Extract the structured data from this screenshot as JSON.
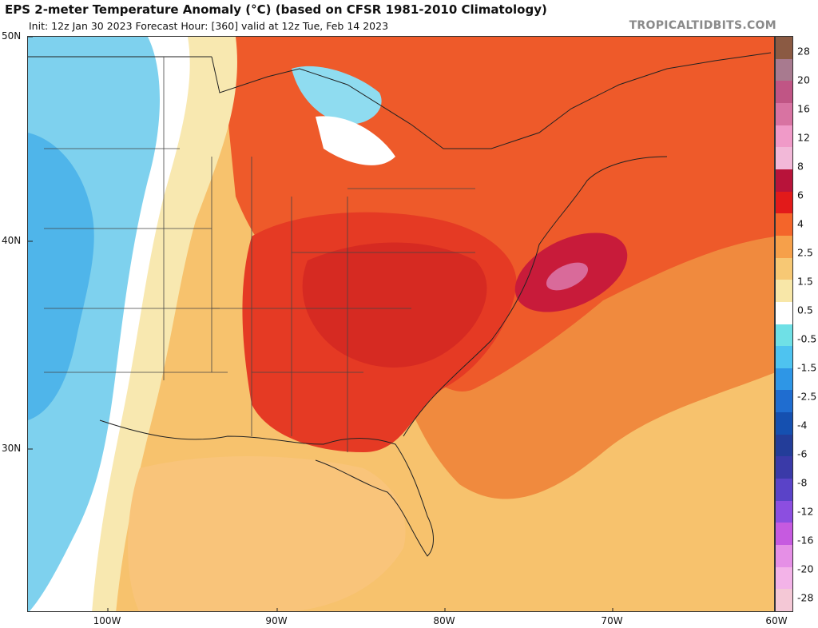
{
  "header": {
    "title": "EPS 2-meter Temperature Anomaly (°C) (based on CFSR 1981-2010 Climatology)",
    "subtitle": "Init: 12z Jan 30 2023   Forecast Hour: [360]   valid at 12z Tue, Feb 14 2023",
    "brand": "TROPICALTIDBITS.COM"
  },
  "axes": {
    "lat_labels": [
      "50N",
      "40N",
      "30N"
    ],
    "lon_labels": [
      "100W",
      "90W",
      "80W",
      "70W",
      "60W"
    ]
  },
  "colorbar": {
    "labels": [
      "28",
      "20",
      "16",
      "12",
      "8",
      "6",
      "4",
      "2.5",
      "1.5",
      "0.5",
      "-0.5",
      "-1.5",
      "-2.5",
      "-4",
      "-6",
      "-8",
      "-12",
      "-16",
      "-20",
      "-28"
    ],
    "colors": [
      "#8b5a43",
      "#a87a8f",
      "#c05585",
      "#d873a2",
      "#f09ac8",
      "#f2b8d8",
      "#b8133a",
      "#e21a1a",
      "#f4652a",
      "#f6a04a",
      "#f7c874",
      "#f8e7a8",
      "#ffffff",
      "#6fe0e6",
      "#4ec3f0",
      "#2e96e6",
      "#1f6dd0",
      "#1550b0",
      "#233d99",
      "#3a3aa8",
      "#5a43c8",
      "#8c4ee0",
      "#c65ae0",
      "#e58fe6",
      "#f3b3e8",
      "#f4c8d6"
    ]
  },
  "map": {
    "fields": [
      {
        "name": "warm-east",
        "color": "#f26b3a"
      },
      {
        "name": "cool-west",
        "color": "#7ed1ee"
      }
    ]
  }
}
